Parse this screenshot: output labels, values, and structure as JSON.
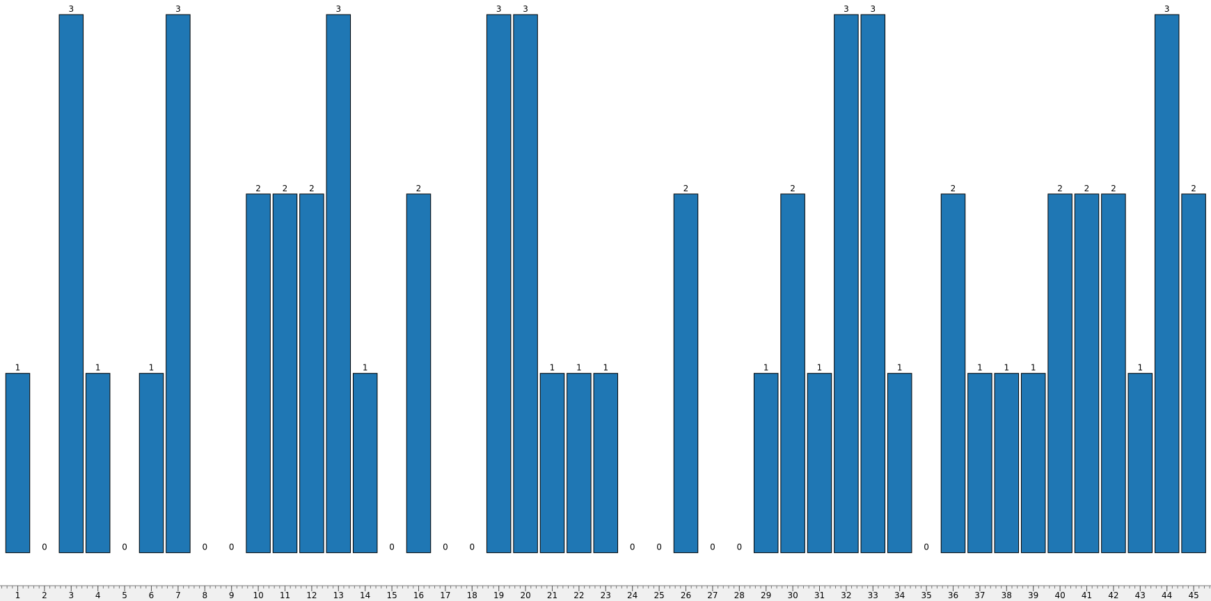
{
  "chart_data": {
    "type": "bar",
    "categories": [
      "1",
      "2",
      "3",
      "4",
      "5",
      "6",
      "7",
      "8",
      "9",
      "10",
      "11",
      "12",
      "13",
      "14",
      "15",
      "16",
      "17",
      "18",
      "19",
      "20",
      "21",
      "22",
      "23",
      "24",
      "25",
      "26",
      "27",
      "28",
      "29",
      "30",
      "31",
      "32",
      "33",
      "34",
      "35",
      "36",
      "37",
      "38",
      "39",
      "40",
      "41",
      "42",
      "43",
      "44",
      "45"
    ],
    "values": [
      1,
      0,
      3,
      1,
      0,
      1,
      3,
      0,
      0,
      2,
      2,
      2,
      3,
      1,
      0,
      2,
      0,
      0,
      3,
      3,
      1,
      1,
      1,
      0,
      0,
      2,
      0,
      0,
      1,
      2,
      1,
      3,
      3,
      1,
      0,
      2,
      1,
      1,
      1,
      2,
      2,
      2,
      1,
      3,
      2
    ],
    "color": "#1f77b4",
    "ylim": [
      0,
      3
    ]
  }
}
